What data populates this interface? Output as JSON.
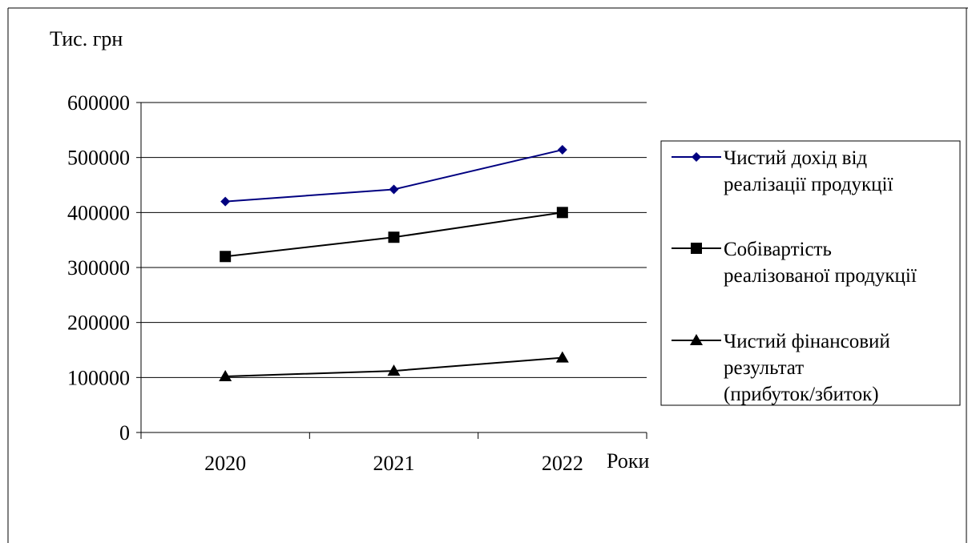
{
  "chart_data": {
    "type": "line",
    "ylabel": "Тис. грн",
    "xlabel": "Роки",
    "categories": [
      "2020",
      "2021",
      "2022"
    ],
    "ylim": [
      0,
      600000
    ],
    "yticks": [
      0,
      100000,
      200000,
      300000,
      400000,
      500000,
      600000
    ],
    "grid": true,
    "legend_position": "right",
    "series": [
      {
        "name_lines": [
          "Чистий дохід від",
          "реалізації продукції"
        ],
        "values": [
          420000,
          442000,
          514000
        ],
        "color": "#000080",
        "marker": "diamond"
      },
      {
        "name_lines": [
          "Собівартість",
          "реалізованої продукції"
        ],
        "values": [
          320000,
          355000,
          400000
        ],
        "color": "#000000",
        "marker": "square"
      },
      {
        "name_lines": [
          "Чистий фінансовий",
          "результат",
          "(прибуток/збиток)"
        ],
        "values": [
          102000,
          112000,
          136000
        ],
        "color": "#000000",
        "marker": "triangle"
      }
    ]
  }
}
